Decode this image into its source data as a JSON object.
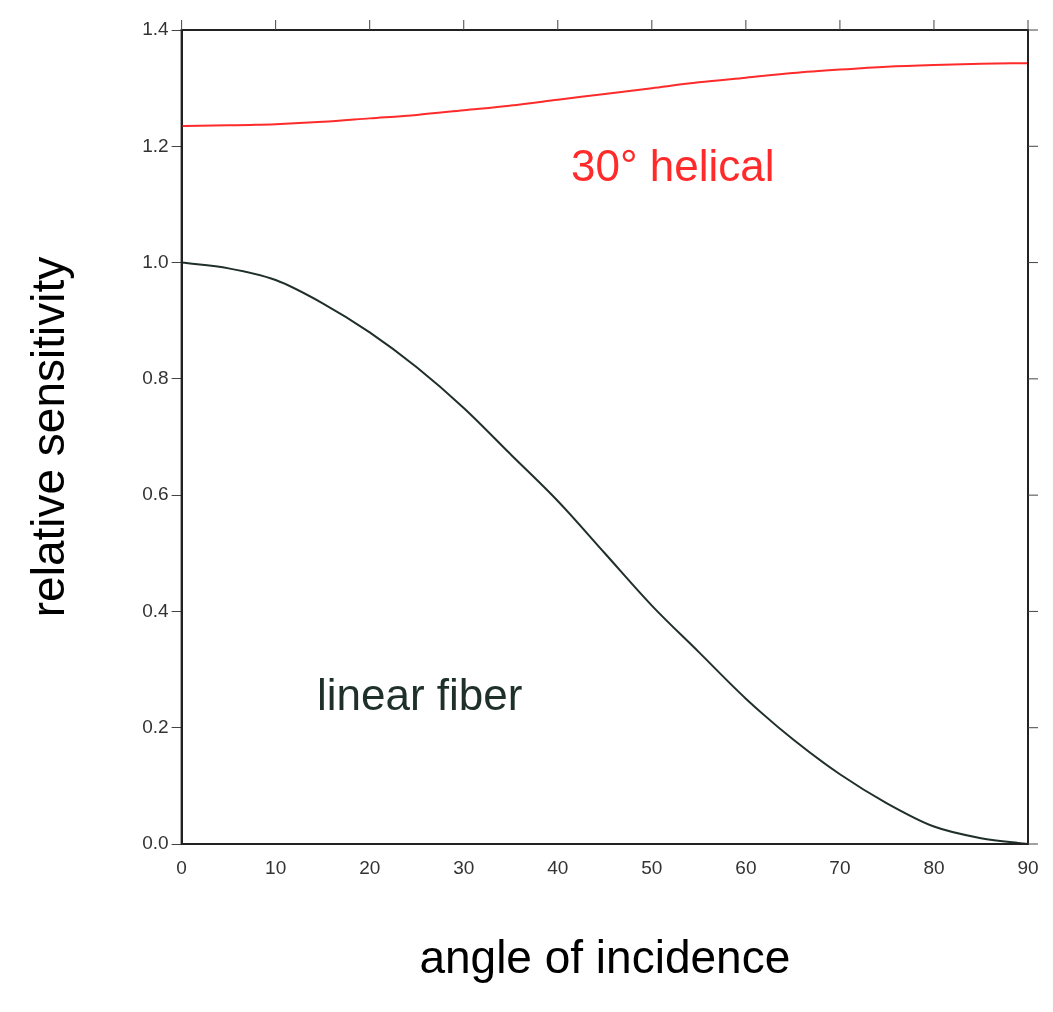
{
  "chart_data": {
    "type": "line",
    "xlabel": "angle of incidence",
    "ylabel": "relative sensitivity",
    "x": [
      0,
      5,
      10,
      15,
      20,
      25,
      30,
      35,
      40,
      45,
      50,
      55,
      60,
      65,
      70,
      75,
      80,
      85,
      90
    ],
    "series": [
      {
        "name": "30° helical",
        "color": "#ff2a2a",
        "values": [
          1.235,
          1.236,
          1.238,
          1.242,
          1.248,
          1.254,
          1.262,
          1.27,
          1.28,
          1.29,
          1.3,
          1.31,
          1.318,
          1.326,
          1.332,
          1.337,
          1.34,
          1.342,
          1.343
        ]
      },
      {
        "name": "linear fiber",
        "color": "#1f2f2a",
        "values": [
          1.0,
          0.99,
          0.97,
          0.93,
          0.88,
          0.82,
          0.75,
          0.67,
          0.59,
          0.5,
          0.41,
          0.33,
          0.25,
          0.18,
          0.12,
          0.07,
          0.03,
          0.01,
          0.0
        ]
      }
    ],
    "xlim": [
      0,
      90
    ],
    "xticks": [
      0,
      10,
      20,
      30,
      40,
      50,
      60,
      70,
      80,
      90
    ],
    "ylim": [
      0,
      1.4
    ],
    "yticks": [
      {
        "value": 0,
        "label": "0.0"
      },
      {
        "value": 0.2,
        "label": "0.2"
      },
      {
        "value": 0.4,
        "label": "0.4"
      },
      {
        "value": 0.6,
        "label": "0.6"
      },
      {
        "value": 0.8,
        "label": "0.8"
      },
      {
        "value": 1.0,
        "label": "1.0"
      },
      {
        "value": 1.2,
        "label": "1.2"
      },
      {
        "value": 1.4,
        "label": "1.4"
      }
    ],
    "grid": false,
    "legend": false,
    "marker": "none",
    "line_style": "solid"
  }
}
